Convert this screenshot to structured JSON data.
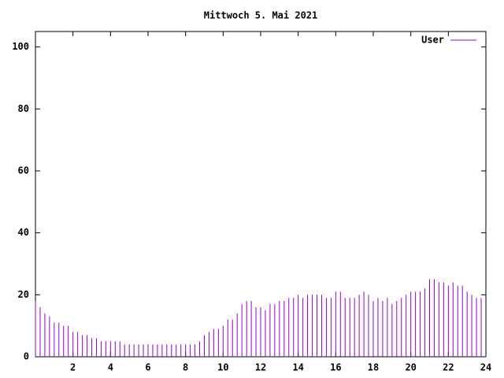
{
  "chart_data": {
    "type": "impulse",
    "title": "Mittwoch 5. Mai 2021",
    "x": [
      0,
      0.25,
      0.5,
      0.75,
      1,
      1.25,
      1.5,
      1.75,
      2,
      2.25,
      2.5,
      2.75,
      3,
      3.25,
      3.5,
      3.75,
      4,
      4.25,
      4.5,
      4.75,
      5,
      5.25,
      5.5,
      5.75,
      6,
      6.25,
      6.5,
      6.75,
      7,
      7.25,
      7.5,
      7.75,
      8,
      8.25,
      8.5,
      8.75,
      9,
      9.25,
      9.5,
      9.75,
      10,
      10.25,
      10.5,
      10.75,
      11,
      11.25,
      11.5,
      11.75,
      12,
      12.25,
      12.5,
      12.75,
      13,
      13.25,
      13.5,
      13.75,
      14,
      14.25,
      14.5,
      14.75,
      15,
      15.25,
      15.5,
      15.75,
      16,
      16.25,
      16.5,
      16.75,
      17,
      17.25,
      17.5,
      17.75,
      18,
      18.25,
      18.5,
      18.75,
      19,
      19.25,
      19.5,
      19.75,
      20,
      20.25,
      20.5,
      20.75,
      21,
      21.25,
      21.5,
      21.75,
      22,
      22.25,
      22.5,
      22.75,
      23,
      23.25,
      23.5,
      23.75
    ],
    "series": [
      {
        "name": "User",
        "color": "#9400d3",
        "values": [
          18,
          16,
          14,
          13,
          11,
          11,
          10,
          10,
          8,
          8,
          7,
          7,
          6,
          6,
          5,
          5,
          5,
          5,
          5,
          4,
          4,
          4,
          4,
          4,
          4,
          4,
          4,
          4,
          4,
          4,
          4,
          4,
          4,
          4,
          4,
          5,
          7,
          8,
          9,
          9,
          10,
          12,
          12,
          14,
          17,
          18,
          18,
          16,
          16,
          15,
          17,
          17,
          18,
          18,
          19,
          19,
          20,
          19,
          20,
          20,
          20,
          20,
          19,
          19,
          21,
          21,
          19,
          19,
          19,
          20,
          21,
          20,
          18,
          19,
          18,
          19,
          17,
          18,
          19,
          20,
          21,
          21,
          21,
          22,
          25,
          25,
          24,
          24,
          23,
          24,
          23,
          23,
          21,
          20,
          19,
          19
        ]
      }
    ],
    "xlim": [
      0,
      24
    ],
    "xticks": [
      2,
      4,
      6,
      8,
      10,
      12,
      14,
      16,
      18,
      20,
      22,
      24
    ],
    "ylim": [
      0,
      105
    ],
    "yticks": [
      0,
      20,
      40,
      60,
      80,
      100
    ],
    "grid": false,
    "legend": "top-right"
  }
}
